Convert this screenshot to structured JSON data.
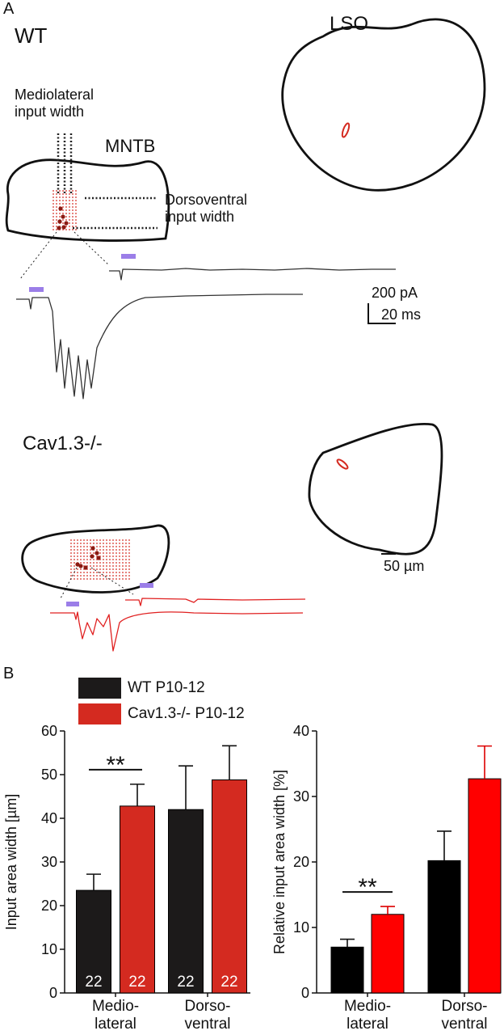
{
  "panel_a": {
    "label": "A",
    "wt": {
      "genotype": "WT",
      "lso": "LSO",
      "mntb": "MNTB",
      "mediolateral": "Mediolateral\ninput width",
      "dorsoventral": "Dorsoventral\ninput width",
      "current_scale": "200 pA",
      "time_scale": "20 ms"
    },
    "cav": {
      "genotype": "Cav1.3-/-",
      "distance_scale": "50 µm"
    }
  },
  "panel_b": {
    "label": "B"
  },
  "chart_data": [
    {
      "type": "bar",
      "y_label": "Input area width [µm]",
      "categories": [
        "Medio-\nlateral",
        "Dorso-\nventral"
      ],
      "series": [
        {
          "name": "WT P10-12",
          "color": "#1c1a1a",
          "values": [
            23.5,
            42
          ],
          "errors": [
            3.7,
            10
          ],
          "n": [
            22,
            22
          ]
        },
        {
          "name": "Cav1.3-/- P10-12",
          "color": "#d42a20",
          "values": [
            42.8,
            48.8
          ],
          "errors": [
            5,
            7.8
          ],
          "n": [
            22,
            22
          ]
        }
      ],
      "annotations": [
        {
          "text": "**",
          "category": 0
        }
      ],
      "ylim": [
        0,
        60
      ],
      "yticks": [
        0,
        10,
        20,
        30,
        40,
        50,
        60
      ]
    },
    {
      "type": "bar",
      "y_label": "Relative input area width [%]",
      "categories": [
        "Medio-\nlateral",
        "Dorso-\nventral"
      ],
      "series": [
        {
          "color": "#000000",
          "values": [
            7,
            20.2
          ],
          "errors": [
            1.2,
            4.5
          ]
        },
        {
          "color": "#ff0000",
          "values": [
            12,
            32.7
          ],
          "errors": [
            1.2,
            5
          ]
        }
      ],
      "annotations": [
        {
          "text": "**",
          "category": 0
        }
      ],
      "ylim": [
        0,
        40
      ],
      "yticks": [
        0,
        10,
        20,
        30,
        40
      ]
    }
  ]
}
